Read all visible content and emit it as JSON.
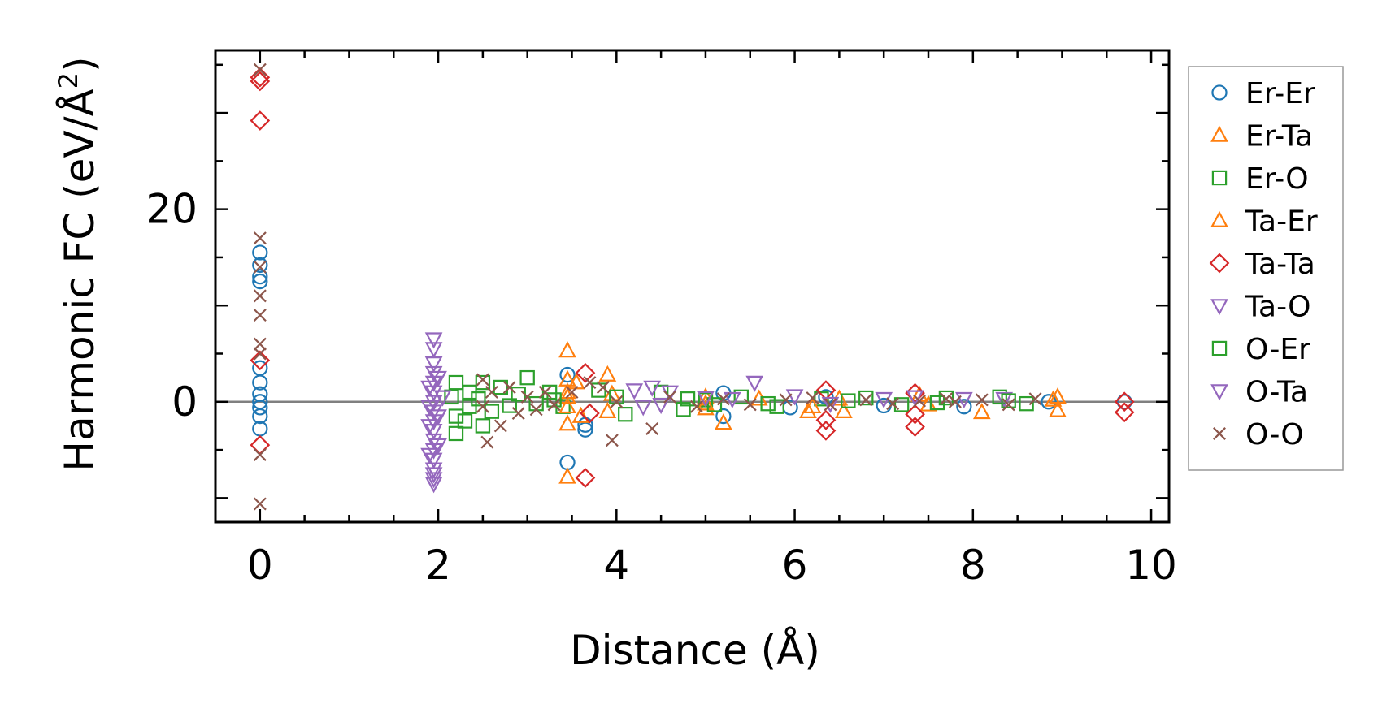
{
  "chart_data": {
    "type": "scatter",
    "title": "",
    "xlabel": "Distance (Å)",
    "ylabel_main": "Harmonic FC (eV/Å",
    "ylabel_sup": "2",
    "ylabel_close": ")",
    "xlim": [
      -0.5,
      10.2
    ],
    "ylim": [
      -12.5,
      36.5
    ],
    "xticks": [
      0,
      2,
      4,
      6,
      8,
      10
    ],
    "xtick_labels": [
      "0",
      "2",
      "4",
      "6",
      "8",
      "10"
    ],
    "yticks": [
      0,
      20
    ],
    "ytick_labels": [
      "0",
      "20"
    ],
    "zero_line": 0,
    "legend_position": "right",
    "series": [
      {
        "name": "Er-Er",
        "marker": "circle",
        "color": "#1f77b4",
        "points": [
          [
            0,
            15.5
          ],
          [
            0,
            14.2
          ],
          [
            0,
            13.0
          ],
          [
            0,
            12.5
          ],
          [
            0,
            3.5
          ],
          [
            0,
            2.0
          ],
          [
            0,
            0.8
          ],
          [
            0,
            0
          ],
          [
            0,
            -0.6
          ],
          [
            0,
            -1.5
          ],
          [
            0,
            -2.8
          ],
          [
            3.45,
            2.8
          ],
          [
            3.45,
            -6.3
          ],
          [
            3.65,
            -2.4
          ],
          [
            3.65,
            -2.9
          ],
          [
            5.2,
            0.9
          ],
          [
            5.2,
            -1.5
          ],
          [
            5.95,
            -0.6
          ],
          [
            6.35,
            0.5
          ],
          [
            7.0,
            -0.4
          ],
          [
            7.9,
            -0.5
          ],
          [
            8.85,
            0
          ],
          [
            9.7,
            0
          ]
        ]
      },
      {
        "name": "Er-Ta",
        "marker": "triangle-up",
        "color": "#ff7f0e",
        "points": [
          [
            3.45,
            5.3
          ],
          [
            3.45,
            2.3
          ],
          [
            3.45,
            0.5
          ],
          [
            3.45,
            -2.3
          ],
          [
            3.45,
            -7.8
          ],
          [
            3.9,
            2.8
          ],
          [
            3.9,
            -1.0
          ],
          [
            5.0,
            0.5
          ],
          [
            5.0,
            -0.7
          ],
          [
            5.2,
            -2.2
          ],
          [
            6.15,
            -1.0
          ],
          [
            6.55,
            -1.0
          ],
          [
            7.4,
            0.7
          ],
          [
            8.1,
            -1.1
          ],
          [
            8.95,
            0.5
          ],
          [
            8.95,
            -0.9
          ]
        ]
      },
      {
        "name": "Er-O",
        "marker": "square",
        "color": "#2ca02c",
        "points": [
          [
            2.2,
            2.0
          ],
          [
            2.2,
            -1.5
          ],
          [
            2.2,
            -3.3
          ],
          [
            2.35,
            1.0
          ],
          [
            2.35,
            -0.5
          ],
          [
            2.5,
            2.0
          ],
          [
            2.5,
            -2.5
          ],
          [
            2.7,
            1.5
          ],
          [
            2.9,
            0.8
          ],
          [
            3.0,
            2.5
          ],
          [
            3.1,
            -0.2
          ],
          [
            3.25,
            1.0
          ],
          [
            3.4,
            -0.5
          ],
          [
            3.8,
            1.2
          ],
          [
            4.1,
            -1.3
          ],
          [
            4.5,
            1.0
          ],
          [
            4.75,
            -0.8
          ],
          [
            5.0,
            0.2
          ],
          [
            5.4,
            0.5
          ],
          [
            5.8,
            -0.5
          ],
          [
            6.3,
            0.3
          ],
          [
            6.8,
            0.4
          ],
          [
            7.2,
            -0.3
          ],
          [
            7.7,
            0.4
          ],
          [
            8.3,
            0.5
          ],
          [
            8.6,
            -0.2
          ]
        ]
      },
      {
        "name": "Ta-Er",
        "marker": "triangle-up",
        "color": "#ff7f0e",
        "points": [
          [
            3.45,
            1.0
          ],
          [
            3.45,
            -0.5
          ],
          [
            3.55,
            2.0
          ],
          [
            3.6,
            -1.5
          ],
          [
            3.95,
            0.8
          ],
          [
            5.0,
            -0.2
          ],
          [
            5.6,
            0.3
          ],
          [
            6.2,
            -0.5
          ],
          [
            6.5,
            0.3
          ],
          [
            7.5,
            -0.3
          ],
          [
            8.9,
            0.2
          ]
        ]
      },
      {
        "name": "Ta-Ta",
        "marker": "diamond",
        "color": "#d62728",
        "points": [
          [
            0,
            33.7
          ],
          [
            0,
            33.3
          ],
          [
            0,
            29.2
          ],
          [
            0,
            4.3
          ],
          [
            0,
            -4.5
          ],
          [
            3.65,
            3.0
          ],
          [
            3.65,
            -7.9
          ],
          [
            3.7,
            -1.2
          ],
          [
            6.35,
            1.2
          ],
          [
            6.35,
            -1.9
          ],
          [
            6.35,
            -3.0
          ],
          [
            7.35,
            0.9
          ],
          [
            7.35,
            -1.3
          ],
          [
            7.35,
            -2.6
          ],
          [
            9.7,
            0
          ],
          [
            9.7,
            -1.1
          ]
        ]
      },
      {
        "name": "Ta-O",
        "marker": "triangle-down",
        "color": "#9467bd",
        "points": [
          [
            1.95,
            6.5
          ],
          [
            1.95,
            5.5
          ],
          [
            1.95,
            4.0
          ],
          [
            1.95,
            3.0
          ],
          [
            1.95,
            2.0
          ],
          [
            1.95,
            1.0
          ],
          [
            1.95,
            0
          ],
          [
            1.95,
            -1.0
          ],
          [
            1.95,
            -2.0
          ],
          [
            1.95,
            -3.0
          ],
          [
            1.95,
            -4.0
          ],
          [
            1.95,
            -5.0
          ],
          [
            1.95,
            -6.0
          ],
          [
            1.95,
            -7.0
          ],
          [
            1.95,
            -8.0
          ],
          [
            1.95,
            -8.5
          ],
          [
            2.0,
            2.5
          ],
          [
            2.0,
            -1.5
          ],
          [
            2.0,
            -4.5
          ],
          [
            4.4,
            1.5
          ],
          [
            4.6,
            1.0
          ],
          [
            4.3,
            -0.5
          ],
          [
            5.55,
            2.0
          ],
          [
            5.3,
            0.3
          ],
          [
            6.0,
            0.6
          ],
          [
            7.35,
            0.5
          ],
          [
            7.9,
            0.3
          ],
          [
            8.35,
            0.3
          ]
        ]
      },
      {
        "name": "O-Er",
        "marker": "square",
        "color": "#2ca02c",
        "points": [
          [
            2.15,
            0.5
          ],
          [
            2.3,
            -2.0
          ],
          [
            2.45,
            0.3
          ],
          [
            2.6,
            -1.0
          ],
          [
            2.8,
            -0.4
          ],
          [
            3.3,
            0.2
          ],
          [
            4.0,
            0.5
          ],
          [
            4.8,
            0.3
          ],
          [
            5.1,
            -0.3
          ],
          [
            5.7,
            -0.2
          ],
          [
            6.6,
            0.1
          ],
          [
            7.6,
            -0.1
          ],
          [
            8.4,
            0.1
          ]
        ]
      },
      {
        "name": "O-Ta",
        "marker": "triangle-down",
        "color": "#9467bd",
        "points": [
          [
            1.9,
            1.5
          ],
          [
            1.9,
            -0.5
          ],
          [
            1.9,
            -2.5
          ],
          [
            1.9,
            -5.5
          ],
          [
            1.95,
            -7.5
          ],
          [
            2.05,
            0.5
          ],
          [
            4.2,
            1.2
          ],
          [
            4.5,
            -0.3
          ],
          [
            5.0,
            0.4
          ],
          [
            6.4,
            -0.2
          ],
          [
            7.0,
            0.3
          ]
        ]
      },
      {
        "name": "O-O",
        "marker": "x",
        "color": "#8c564b",
        "points": [
          [
            0,
            34.5
          ],
          [
            0,
            17.0
          ],
          [
            0,
            14.0
          ],
          [
            0,
            11.0
          ],
          [
            0,
            9.0
          ],
          [
            0,
            6.0
          ],
          [
            0,
            5.0
          ],
          [
            0,
            -5.5
          ],
          [
            0,
            -10.6
          ],
          [
            2.5,
            2.3
          ],
          [
            2.5,
            -0.5
          ],
          [
            2.55,
            -4.2
          ],
          [
            2.6,
            1.0
          ],
          [
            2.7,
            -2.5
          ],
          [
            2.8,
            1.5
          ],
          [
            2.9,
            -1.2
          ],
          [
            3.0,
            0.5
          ],
          [
            3.1,
            -0.8
          ],
          [
            3.2,
            1.0
          ],
          [
            3.3,
            -0.3
          ],
          [
            3.5,
            1.0
          ],
          [
            3.7,
            2.0
          ],
          [
            3.85,
            1.5
          ],
          [
            3.95,
            -4.0
          ],
          [
            4.0,
            0
          ],
          [
            4.4,
            -2.8
          ],
          [
            4.6,
            0.5
          ],
          [
            4.9,
            -0.5
          ],
          [
            5.2,
            0.3
          ],
          [
            5.5,
            -0.3
          ],
          [
            5.9,
            0.2
          ],
          [
            6.2,
            0.4
          ],
          [
            6.4,
            -0.3
          ],
          [
            6.8,
            0.2
          ],
          [
            7.1,
            -0.2
          ],
          [
            7.4,
            0.1
          ],
          [
            7.7,
            0.3
          ],
          [
            7.8,
            0
          ],
          [
            8.1,
            0.2
          ],
          [
            8.4,
            -0.3
          ],
          [
            8.7,
            0.3
          ]
        ]
      }
    ]
  }
}
